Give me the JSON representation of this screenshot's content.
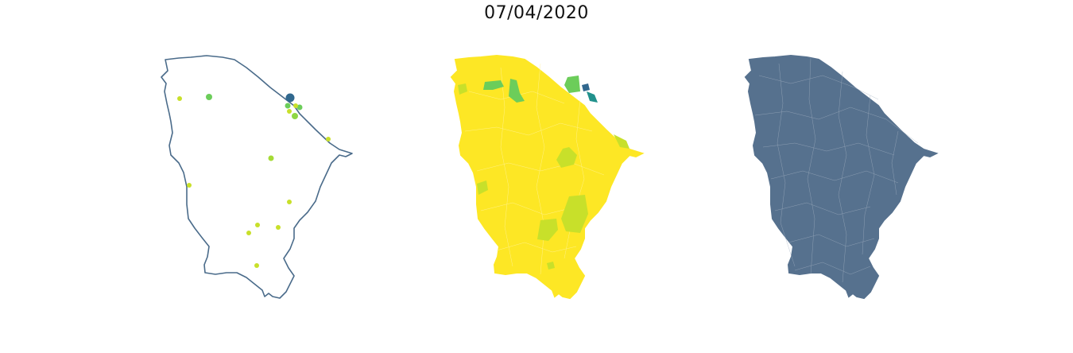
{
  "title": "07/04/2020",
  "colors": {
    "outline": "#4a6b8a",
    "state_fill": "#fde725",
    "municipality_fill": "#56718e",
    "municipality_border": "#a3b1c2",
    "high": "#31688e",
    "mid_high": "#21918c",
    "mid": "#6ccd5a",
    "low": "#c8e02a",
    "very_low": "#b5de2b"
  },
  "panels": [
    {
      "name": "case-points-map",
      "style": "outline-with-points"
    },
    {
      "name": "municipality-choropleth-map",
      "style": "yellow-choropleth"
    },
    {
      "name": "municipality-boundaries-map",
      "style": "slate-municipalities"
    }
  ]
}
